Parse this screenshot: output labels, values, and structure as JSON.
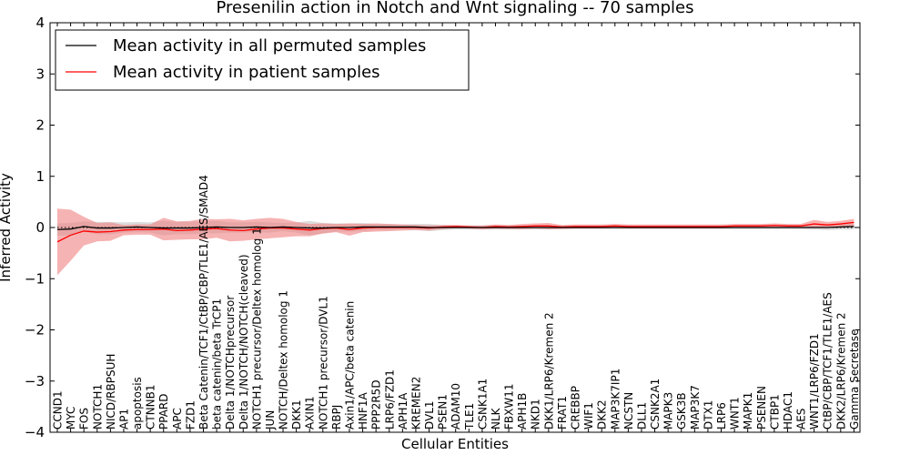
{
  "chart_data": {
    "type": "line",
    "title": "Presenilin action in Notch and Wnt signaling -- 70 samples",
    "xlabel": "Cellular Entities",
    "ylabel": "Inferred Activity",
    "ylim": [
      -4,
      4
    ],
    "yticks": [
      -4,
      -3,
      -2,
      -1,
      0,
      1,
      2,
      3,
      4
    ],
    "legend_position": "top-left",
    "categories": [
      "CCND1",
      "MYC",
      "FOS",
      "NOTCH1",
      "NICD/RBPSUH",
      "AP1",
      "apoptosis",
      "CTNNB1",
      "PPARD",
      "APC",
      "FZD1",
      "Beta Catenin/TCF1/CtBP/CBP/TLE1/AES/SMAD4",
      "beta catenin/beta TrCP1",
      "Delta 1/NOTCHprecursor",
      "Delta 1/NOTCH/NOTCH(cleaved)",
      "NOTCH1 precursor/Deltex homolog 1",
      "JUN",
      "NOTCH/Deltex homolog 1",
      "DKK1",
      "AXIN1",
      "NOTCH1 precursor/DVL1",
      "RBPJ",
      "Axin1/APC/beta catenin",
      "HNF1A",
      "PPP2R5D",
      "LRP6/FZD1",
      "APH1A",
      "KREMEN2",
      "DVL1",
      "PSEN1",
      "ADAM10",
      "TLE1",
      "CSNK1A1",
      "NLK",
      "FBXW11",
      "APH1B",
      "NKD1",
      "DKK1/LRP6/Kremen 2",
      "FRAT1",
      "CREBBP",
      "WIF1",
      "DKK2",
      "MAP3K7IP1",
      "NCSTN",
      "DLL1",
      "CSNK2A1",
      "MAPK3",
      "GSK3B",
      "MAP3K7",
      "DTX1",
      "LRP6",
      "WNT1",
      "MAPK1",
      "PSENEN",
      "CTBP1",
      "HDAC1",
      "AES",
      "WNT1/LRP6/FZD1",
      "CtBP/CBP/TCF1/TLE1/AES",
      "DKK2/LRP6/Kremen 2",
      "Gamma Secretase"
    ],
    "series": [
      {
        "name": "Mean activity in all permuted samples",
        "color": "#000000",
        "band_color": "#bfbfbf",
        "values": [
          -0.04,
          -0.03,
          0.02,
          -0.01,
          -0.01,
          0.0,
          0.01,
          0.0,
          -0.01,
          -0.01,
          -0.01,
          0.0,
          0.01,
          0.0,
          0.0,
          0.01,
          0.0,
          0.01,
          0.0,
          -0.01,
          -0.01,
          0.0,
          0.0,
          0.01,
          0.01,
          0.01,
          0.01,
          0.01,
          0.0,
          0.0,
          0.0,
          0.0,
          0.0,
          0.0,
          0.0,
          0.0,
          0.0,
          0.0,
          0.0,
          0.0,
          0.0,
          0.0,
          0.0,
          0.0,
          0.0,
          0.0,
          0.0,
          0.0,
          0.0,
          0.0,
          0.0,
          0.0,
          0.0,
          0.0,
          0.0,
          0.0,
          0.0,
          0.0,
          0.0,
          0.01,
          0.02
        ],
        "band_half_width": [
          0.12,
          0.12,
          0.1,
          0.12,
          0.12,
          0.1,
          0.1,
          0.1,
          0.14,
          0.12,
          0.12,
          0.12,
          0.12,
          0.1,
          0.1,
          0.1,
          0.1,
          0.08,
          0.1,
          0.14,
          0.1,
          0.08,
          0.08,
          0.08,
          0.06,
          0.06,
          0.05,
          0.06,
          0.07,
          0.05,
          0.04,
          0.04,
          0.04,
          0.04,
          0.04,
          0.04,
          0.04,
          0.04,
          0.03,
          0.03,
          0.03,
          0.03,
          0.03,
          0.03,
          0.03,
          0.03,
          0.03,
          0.03,
          0.03,
          0.03,
          0.03,
          0.03,
          0.03,
          0.03,
          0.03,
          0.03,
          0.03,
          0.04,
          0.05,
          0.05,
          0.06
        ]
      },
      {
        "name": "Mean activity in patient samples",
        "color": "#ff0000",
        "band_color": "#f08080",
        "values": [
          -0.28,
          -0.15,
          -0.07,
          -0.09,
          -0.08,
          -0.05,
          -0.04,
          -0.04,
          -0.03,
          -0.06,
          -0.05,
          -0.03,
          -0.02,
          -0.05,
          -0.06,
          -0.03,
          -0.01,
          -0.01,
          -0.03,
          -0.05,
          -0.02,
          -0.01,
          -0.04,
          -0.01,
          0.0,
          0.0,
          0.0,
          0.0,
          -0.01,
          0.01,
          0.02,
          0.01,
          0.0,
          0.02,
          0.01,
          0.02,
          0.03,
          0.03,
          0.01,
          0.02,
          0.02,
          0.02,
          0.03,
          0.02,
          0.02,
          0.02,
          0.02,
          0.02,
          0.02,
          0.02,
          0.02,
          0.03,
          0.03,
          0.03,
          0.04,
          0.03,
          0.03,
          0.07,
          0.05,
          0.07,
          0.1
        ],
        "band_half_width": [
          0.65,
          0.5,
          0.28,
          0.18,
          0.18,
          0.1,
          0.1,
          0.1,
          0.22,
          0.18,
          0.18,
          0.2,
          0.18,
          0.22,
          0.2,
          0.2,
          0.2,
          0.18,
          0.14,
          0.12,
          0.1,
          0.08,
          0.12,
          0.08,
          0.08,
          0.07,
          0.06,
          0.05,
          0.05,
          0.04,
          0.03,
          0.03,
          0.04,
          0.04,
          0.04,
          0.05,
          0.05,
          0.06,
          0.04,
          0.04,
          0.04,
          0.04,
          0.04,
          0.04,
          0.04,
          0.04,
          0.04,
          0.04,
          0.04,
          0.04,
          0.04,
          0.04,
          0.04,
          0.04,
          0.04,
          0.04,
          0.04,
          0.08,
          0.06,
          0.06,
          0.07
        ]
      }
    ]
  }
}
